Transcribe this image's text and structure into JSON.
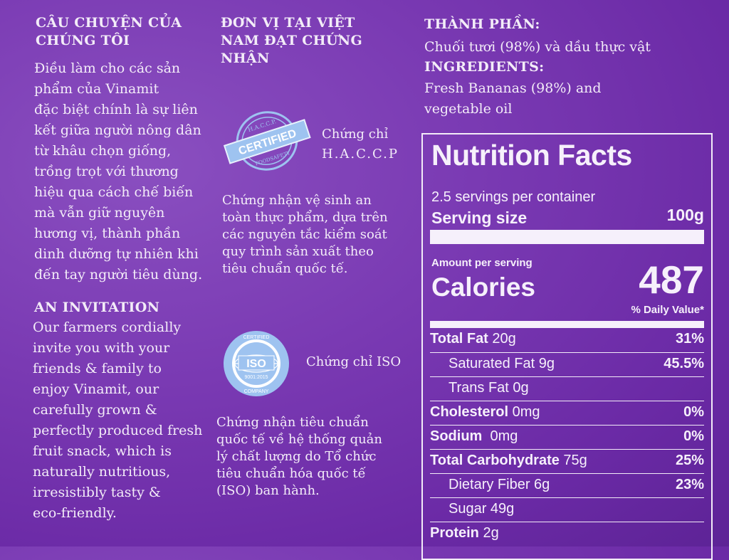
{
  "story": {
    "heading_line1": "CÂU CHUYỆN CỦA",
    "heading_line2": "CHÚNG TÔI",
    "body": [
      "Điều làm cho các sản",
      "phẩm của Vinamit",
      "đặc biệt chính là sự liên",
      "kết giữa người nông dân",
      "từ khâu chọn giống,",
      "trồng trọt với thương",
      "hiệu qua cách chế biến",
      "mà vẫn giữ nguyên",
      "hương vị, thành phần",
      "dinh dưỡng tự nhiên khi",
      "đến tay người tiêu dùng."
    ]
  },
  "invitation": {
    "heading": "AN INVITATION",
    "body": [
      "Our farmers cordially",
      "invite you with your",
      "friends & family to",
      "enjoy Vinamit, our",
      "carefully grown &",
      "perfectly produced fresh",
      "fruit snack, which is",
      "naturally nutritious,",
      "irresistibly tasty &",
      "eco-friendly."
    ]
  },
  "certification": {
    "heading": [
      "ĐƠN VỊ TẠI VIỆT",
      "NAM ĐẠT CHỨNG",
      "NHẬN"
    ],
    "haccp_badge_text": {
      "top": "H.A.C.C.P.",
      "main": "CERTIFIED",
      "bottom": "FOODSAFETY"
    },
    "haccp_label": [
      "Chứng chỉ",
      "H.A.C.C.P"
    ],
    "haccp_desc": [
      "Chứng nhận vệ sinh an",
      "toàn thực phẩm, dựa trên",
      "các nguyên tắc kiểm soát",
      "quy trình sản xuất theo",
      "tiêu chuẩn quốc tế."
    ],
    "iso_badge_text": {
      "top": "CERTIFIED",
      "main": "ISO",
      "std": "9001:2015",
      "bottom": "COMPANY"
    },
    "iso_label": "Chứng chỉ ISO",
    "iso_desc": [
      "Chứng nhận tiêu chuẩn",
      "quốc tế về hệ thống quản",
      "lý chất lượng do Tổ chức",
      "tiêu chuẩn hóa quốc tế",
      "(ISO) ban hành."
    ]
  },
  "ingredients": {
    "vn_heading": "THÀNH PHẦN:",
    "vn_body": "Chuối tươi (98%) và dầu thực vật",
    "en_heading": "INGREDIENTS:",
    "en_body": [
      "Fresh Bananas (98%) and",
      "vegetable oil"
    ]
  },
  "nutrition": {
    "title": "Nutrition Facts",
    "servings": "2.5 servings per container",
    "serving_size_label": "Serving size",
    "serving_size_value": "100g",
    "amount_per_serving": "Amount per serving",
    "calories_label": "Calories",
    "calories_value": "487",
    "dv_header": "% Daily Value*",
    "rows": [
      {
        "bold": "Total Fat",
        "amount": " 20g",
        "dv": "31%",
        "indent": false
      },
      {
        "bold": "",
        "amount": "Saturated Fat 9g",
        "dv": "45.5%",
        "indent": true
      },
      {
        "bold": "",
        "amount": "Trans Fat 0g",
        "dv": "",
        "indent": true
      },
      {
        "bold": "Cholesterol",
        "amount": " 0mg",
        "dv": "0%",
        "indent": false
      },
      {
        "bold": "Sodium",
        "amount": "  0mg",
        "dv": "0%",
        "indent": false
      },
      {
        "bold": "Total Carbohydrate",
        "amount": " 75g",
        "dv": "25%",
        "indent": false
      },
      {
        "bold": "",
        "amount": "Dietary Fiber 6g",
        "dv": "23%",
        "indent": true
      },
      {
        "bold": "",
        "amount": "Sugar 49g",
        "dv": "",
        "indent": true
      },
      {
        "bold": "Protein",
        "amount": " 2g",
        "dv": "",
        "indent": false
      }
    ]
  },
  "colors": {
    "background": "#7a3ab3",
    "text": "#f3ecf8",
    "badge": "#9ec3f0"
  }
}
